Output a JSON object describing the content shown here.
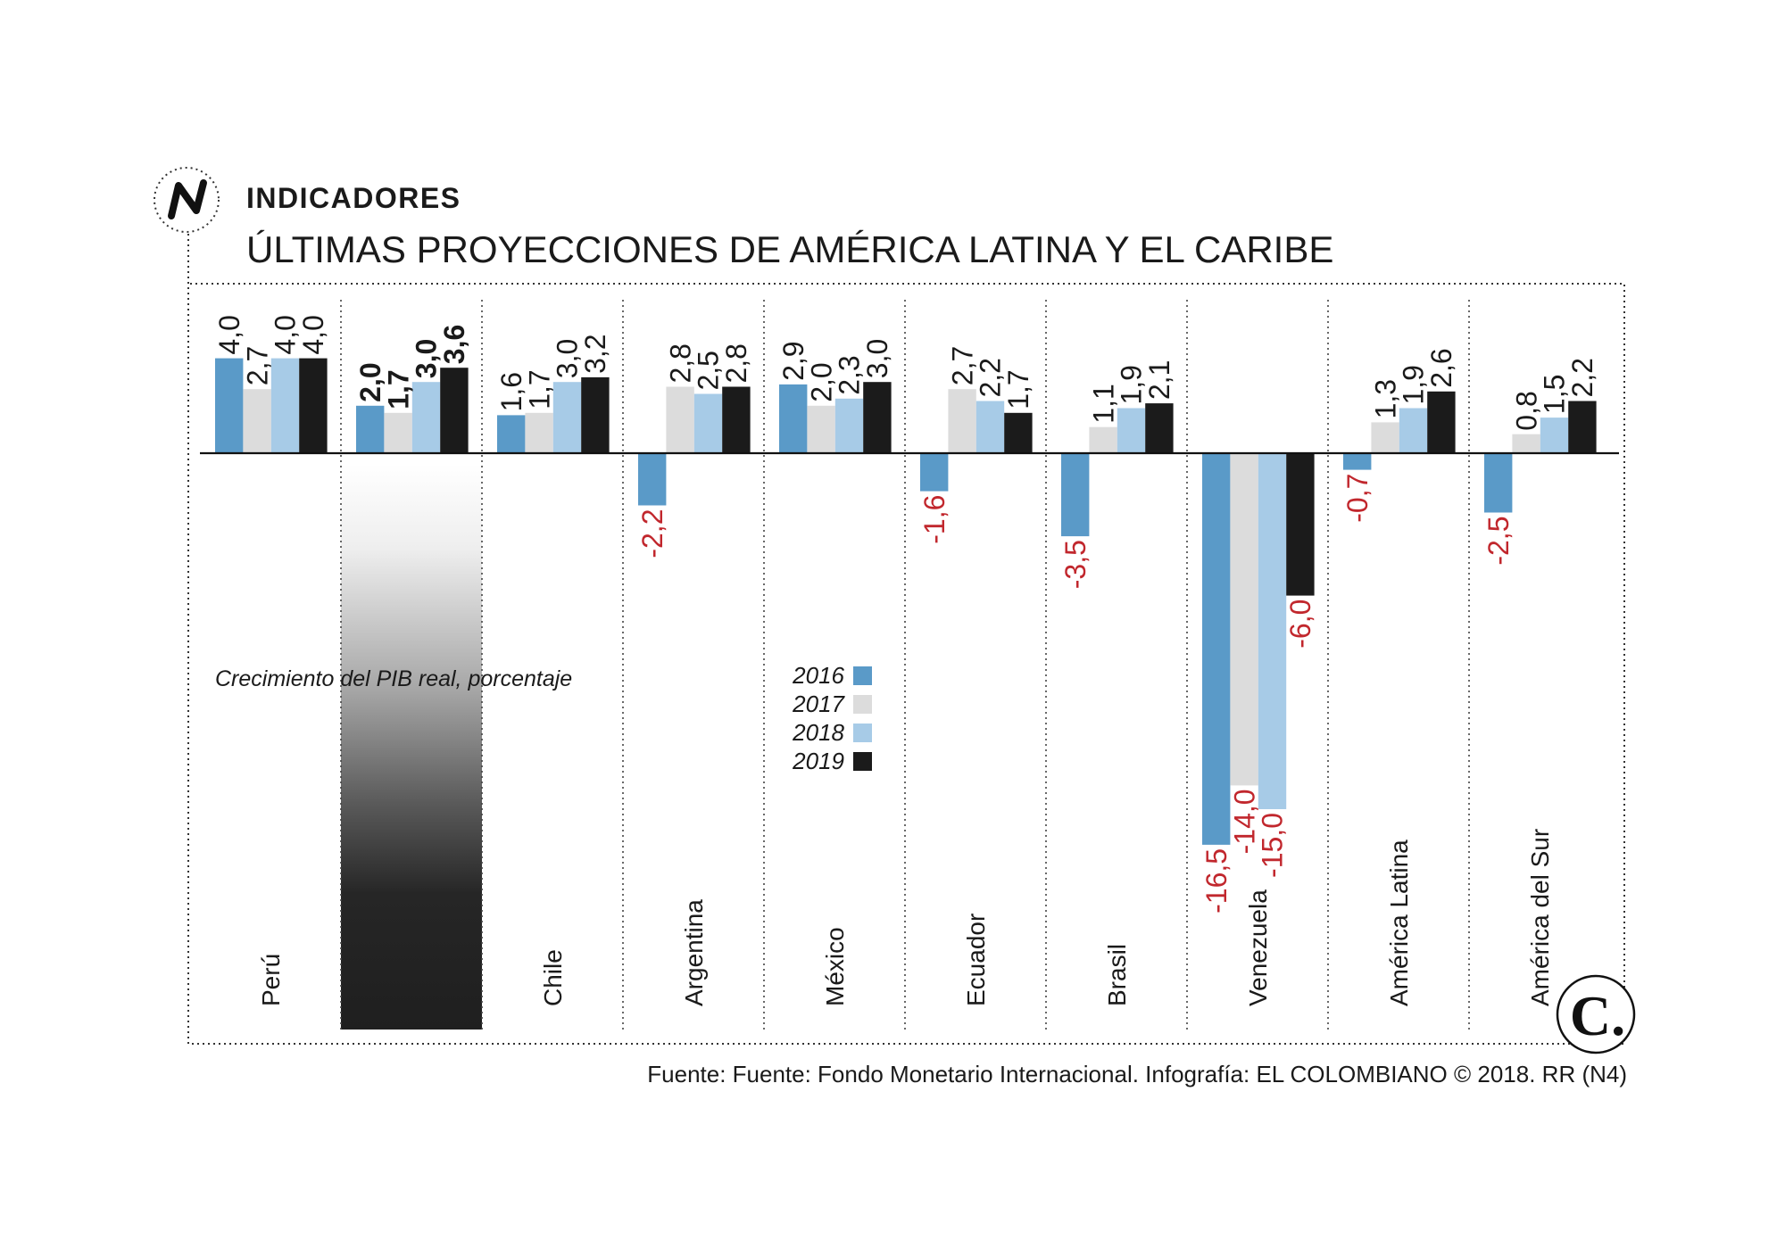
{
  "header": {
    "section_label": "INDICADORES",
    "logo_icon": "n-zigzag-icon"
  },
  "footer": {
    "source": "Fuente: Fuente: Fondo Monetario Internacional. Infografía: EL COLOMBIANO © 2018. RR (N4)",
    "brand_logo_text": "C."
  },
  "colors": {
    "negative_label": "#c1272d"
  },
  "chart_data": {
    "type": "bar",
    "title": "ÚLTIMAS PROYECCIONES DE AMÉRICA LATINA Y EL CARIBE",
    "ylabel": "Crecimiento del PIB real, porcentaje",
    "categories": [
      "Perú",
      "",
      "Chile",
      "Argentina",
      "México",
      "Ecuador",
      "Brasil",
      "Venezuela",
      "América Latina",
      "América del Sur"
    ],
    "bold_labels": [
      false,
      true,
      false,
      false,
      false,
      false,
      false,
      false,
      false,
      false
    ],
    "series": [
      {
        "name": "2016",
        "color": "#5a9ac8",
        "values": [
          4.0,
          2.0,
          1.6,
          -2.2,
          2.9,
          -1.6,
          -3.5,
          -16.5,
          -0.7,
          -2.5
        ],
        "labels": [
          "4,0",
          "2,0",
          "1,6",
          "-2,2",
          "2,9",
          "-1,6",
          "-3,5",
          "-16,5",
          "-0,7",
          "-2,5"
        ]
      },
      {
        "name": "2017",
        "color": "#dcdcdc",
        "values": [
          2.7,
          1.7,
          1.7,
          2.8,
          2.0,
          2.7,
          1.1,
          -14.0,
          1.3,
          0.8
        ],
        "labels": [
          "2,7",
          "1,7",
          "1,7",
          "2,8",
          "2,0",
          "2,7",
          "1,1",
          "-14,0",
          "1,3",
          "0,8"
        ]
      },
      {
        "name": "2018",
        "color": "#a7cbe7",
        "values": [
          4.0,
          3.0,
          3.0,
          2.5,
          2.3,
          2.2,
          1.9,
          -15.0,
          1.9,
          1.5
        ],
        "labels": [
          "4,0",
          "3,0",
          "3,0",
          "2,5",
          "2,3",
          "2,2",
          "1,9",
          "-15,0",
          "1,9",
          "1,5"
        ]
      },
      {
        "name": "2019",
        "color": "#1b1b1b",
        "values": [
          4.0,
          3.6,
          3.2,
          2.8,
          3.0,
          1.7,
          2.1,
          -6.0,
          2.6,
          2.2
        ],
        "labels": [
          "4,0",
          "3,6",
          "3,2",
          "2,8",
          "3,0",
          "1,7",
          "2,1",
          "-6,0",
          "2,6",
          "2,2"
        ]
      }
    ],
    "legend_position": "center",
    "grid": false
  }
}
